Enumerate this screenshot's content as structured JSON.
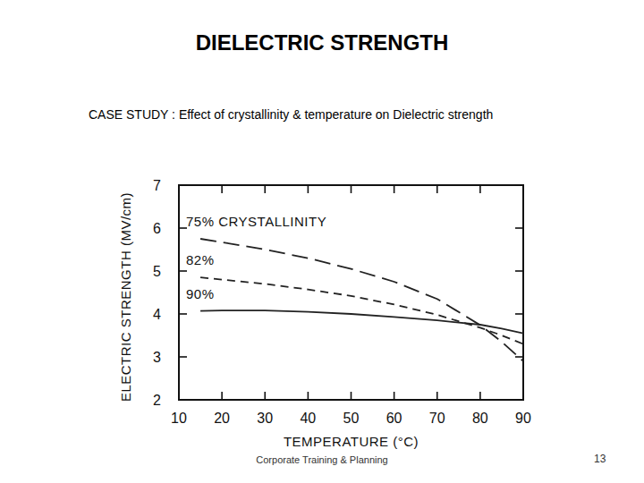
{
  "page": {
    "title": "DIELECTRIC STRENGTH",
    "subtitle": "CASE STUDY : Effect of crystallinity & temperature on Dielectric strength",
    "footer": "Corporate Training & Planning",
    "page_number": "13"
  },
  "chart_data": {
    "type": "line",
    "x_label": "TEMPERATURE (°C)",
    "y_label": "ELECTRIC STRENGTH (MV/cm)",
    "x": [
      15,
      20,
      30,
      40,
      50,
      60,
      70,
      80,
      85,
      90
    ],
    "series": [
      {
        "name": "75% CRYSTALLINITY",
        "color": "#222222",
        "line_style": "longdash",
        "values": [
          5.75,
          5.67,
          5.5,
          5.3,
          5.05,
          4.75,
          4.35,
          3.74,
          3.35,
          2.9
        ]
      },
      {
        "name": "82%",
        "color": "#222222",
        "line_style": "dashed",
        "values": [
          4.85,
          4.8,
          4.7,
          4.57,
          4.42,
          4.22,
          3.98,
          3.68,
          3.5,
          3.3
        ]
      },
      {
        "name": "90%",
        "color": "#222222",
        "line_style": "solid",
        "values": [
          4.07,
          4.08,
          4.08,
          4.05,
          4.0,
          3.93,
          3.85,
          3.75,
          3.66,
          3.55
        ]
      }
    ],
    "xlim": [
      10,
      90
    ],
    "xticks": [
      10,
      20,
      30,
      40,
      50,
      60,
      70,
      80,
      90
    ],
    "ylim": [
      2,
      7
    ],
    "yticks": [
      2,
      3,
      4,
      5,
      6,
      7
    ],
    "grid": false
  }
}
